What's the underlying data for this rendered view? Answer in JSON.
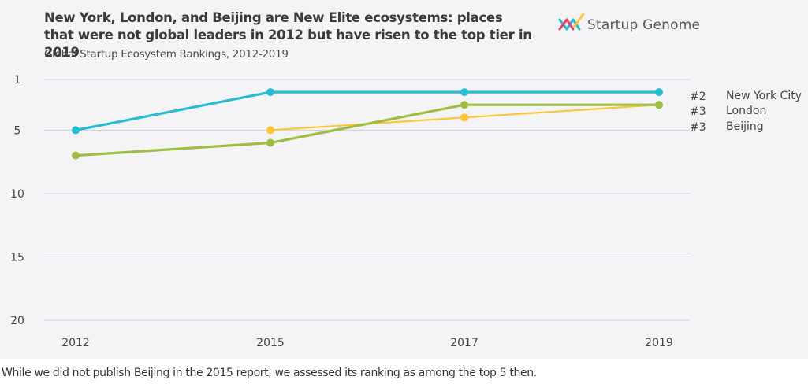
{
  "header": {
    "title": "New York, London, and Beijing are New Elite ecosystems: places that were not global leaders in 2012 but have risen to the top tier in 2019",
    "subtitle": "Global Startup Ecosystem Rankings, 2012-2019",
    "logo_text": "Startup Genome",
    "logo_icon": "startup-genome-logo-icon"
  },
  "footnote": "While we did not publish Beijing in the 2015 report, we assessed its ranking as among the top 5 then.",
  "colors": {
    "new_york": "#29bcd1",
    "london": "#9dbd45",
    "beijing": "#fdc537",
    "gridline": "#d0d0d4",
    "background": "#f4f4f7"
  },
  "chart_data": {
    "type": "line",
    "title": "New York, London, and Beijing are New Elite ecosystems: places that were not global leaders in 2012 but have risen to the top tier in 2019",
    "subtitle": "Global Startup Ecosystem Rankings, 2012-2019",
    "xlabel": "",
    "ylabel": "",
    "categories": [
      "2012",
      "2015",
      "2017",
      "2019"
    ],
    "y_ticks": [
      "1",
      "5",
      "10",
      "15",
      "20"
    ],
    "y_tick_values": [
      1,
      5,
      10,
      15,
      20
    ],
    "ylim": [
      1,
      20
    ],
    "y_inverted": true,
    "grid": true,
    "legend_placement": "right",
    "series": [
      {
        "name": "New York City",
        "rank_label": "#2",
        "color": "#29bcd1",
        "values": [
          5,
          2,
          2,
          2
        ]
      },
      {
        "name": "London",
        "rank_label": "#3",
        "color": "#9dbd45",
        "values": [
          7,
          6,
          3,
          3
        ]
      },
      {
        "name": "Beijing",
        "rank_label": "#3",
        "color": "#fdc537",
        "values": [
          null,
          5,
          4,
          3
        ]
      }
    ]
  }
}
